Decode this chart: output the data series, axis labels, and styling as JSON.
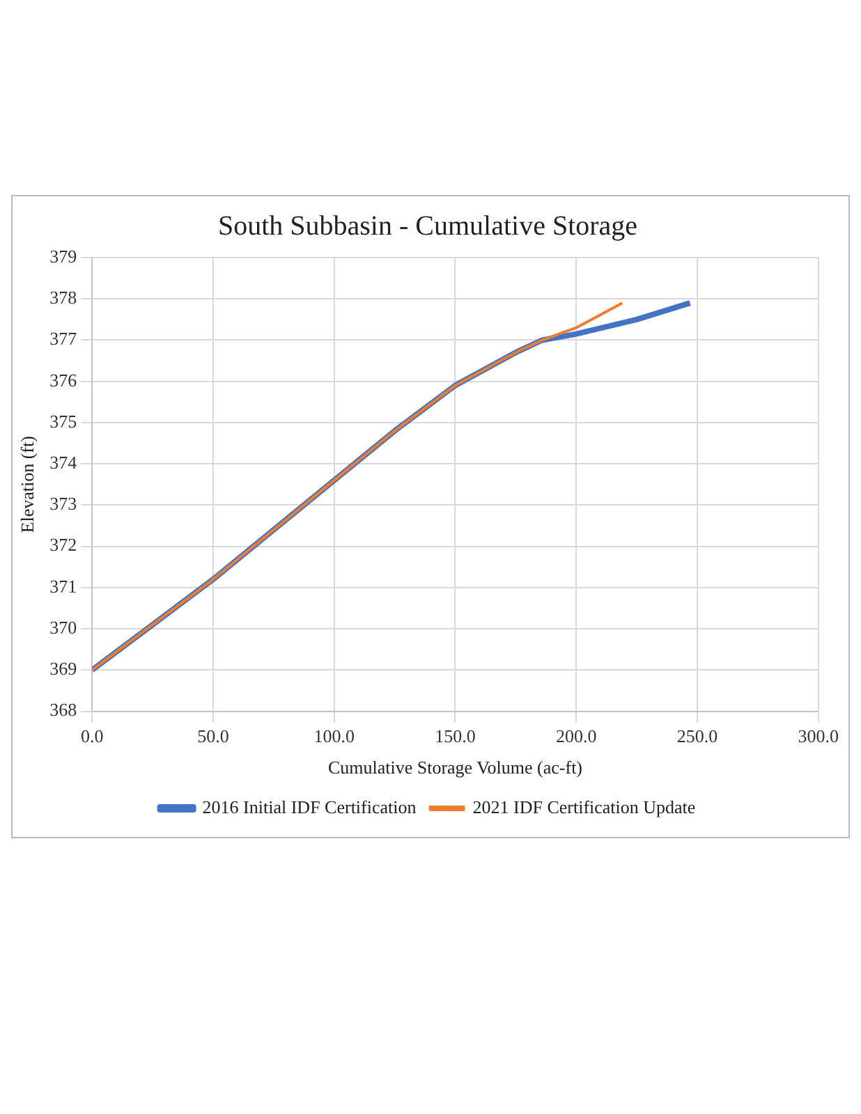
{
  "chart_data": {
    "type": "line",
    "title": "South Subbasin - Cumulative Storage",
    "xlabel": "Cumulative Storage Volume (ac-ft)",
    "ylabel": "Elevation (ft)",
    "series": [
      {
        "name": "2016 Initial IDF Certification",
        "color": "#4472c4",
        "x": [
          0,
          25,
          50,
          75,
          100,
          125,
          150,
          175,
          186,
          200,
          225,
          247
        ],
        "values": [
          369.0,
          370.1,
          371.2,
          372.4,
          373.6,
          374.8,
          375.9,
          376.7,
          377.0,
          377.15,
          377.5,
          377.9
        ]
      },
      {
        "name": "2021 IDF Certification Update",
        "color": "#ed7d31",
        "x": [
          0,
          25,
          50,
          75,
          100,
          125,
          150,
          175,
          186,
          200,
          219
        ],
        "values": [
          369.0,
          370.1,
          371.2,
          372.4,
          373.6,
          374.8,
          375.9,
          376.7,
          377.0,
          377.3,
          377.9
        ]
      }
    ],
    "xlim": [
      0,
      300
    ],
    "xticks": [
      {
        "value": 0,
        "label": "0.0"
      },
      {
        "value": 50,
        "label": "50.0"
      },
      {
        "value": 100,
        "label": "100.0"
      },
      {
        "value": 150,
        "label": "150.0"
      },
      {
        "value": 200,
        "label": "200.0"
      },
      {
        "value": 250,
        "label": "250.0"
      },
      {
        "value": 300,
        "label": "300.0"
      }
    ],
    "ylim": [
      368,
      379
    ],
    "yticks": [
      368,
      369,
      370,
      371,
      372,
      373,
      374,
      375,
      376,
      377,
      378,
      379
    ],
    "grid": true,
    "legend": "bottom",
    "marker": "none",
    "line_style": "solid"
  }
}
